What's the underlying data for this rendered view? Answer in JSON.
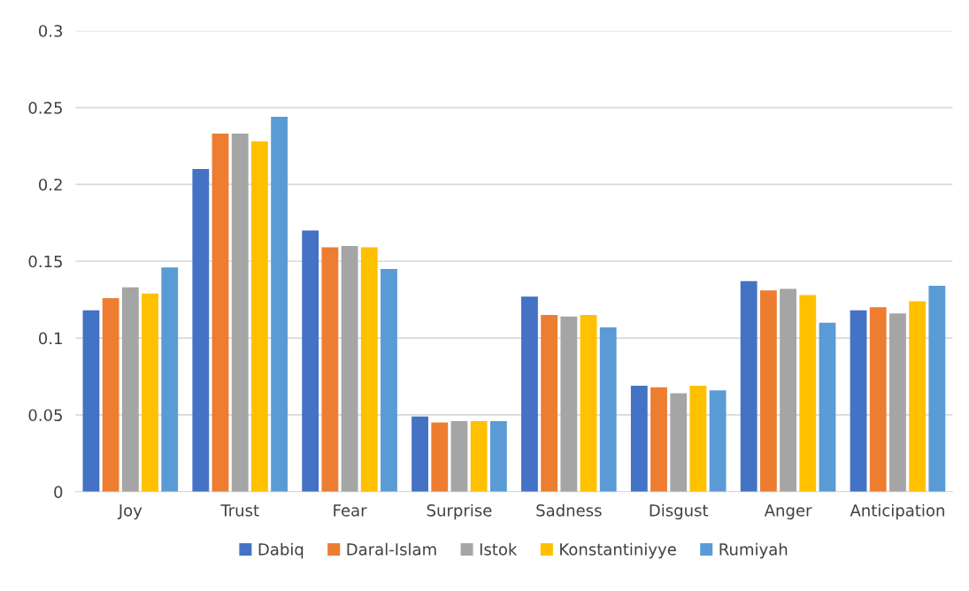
{
  "chart_data": {
    "type": "bar",
    "categories": [
      "Joy",
      "Trust",
      "Fear",
      "Surprise",
      "Sadness",
      "Disgust",
      "Anger",
      "Anticipation"
    ],
    "series": [
      {
        "name": "Dabiq",
        "color": "#4472c4",
        "values": [
          0.118,
          0.21,
          0.17,
          0.049,
          0.127,
          0.069,
          0.137,
          0.118
        ]
      },
      {
        "name": "Daral-Islam",
        "color": "#ed7d31",
        "values": [
          0.126,
          0.233,
          0.159,
          0.045,
          0.115,
          0.068,
          0.131,
          0.12
        ]
      },
      {
        "name": "Istok",
        "color": "#a5a5a5",
        "values": [
          0.133,
          0.233,
          0.16,
          0.046,
          0.114,
          0.064,
          0.132,
          0.116
        ]
      },
      {
        "name": "Konstantiniyye",
        "color": "#ffc000",
        "values": [
          0.129,
          0.228,
          0.159,
          0.046,
          0.115,
          0.069,
          0.128,
          0.124
        ]
      },
      {
        "name": "Rumiyah",
        "color": "#5b9bd5",
        "values": [
          0.146,
          0.244,
          0.145,
          0.046,
          0.107,
          0.066,
          0.11,
          0.134
        ]
      }
    ],
    "ylim": [
      0,
      0.3
    ],
    "yticks": [
      0,
      0.05,
      0.1,
      0.15,
      0.2,
      0.25,
      0.3
    ],
    "grid": "y",
    "legend": "bottom"
  }
}
